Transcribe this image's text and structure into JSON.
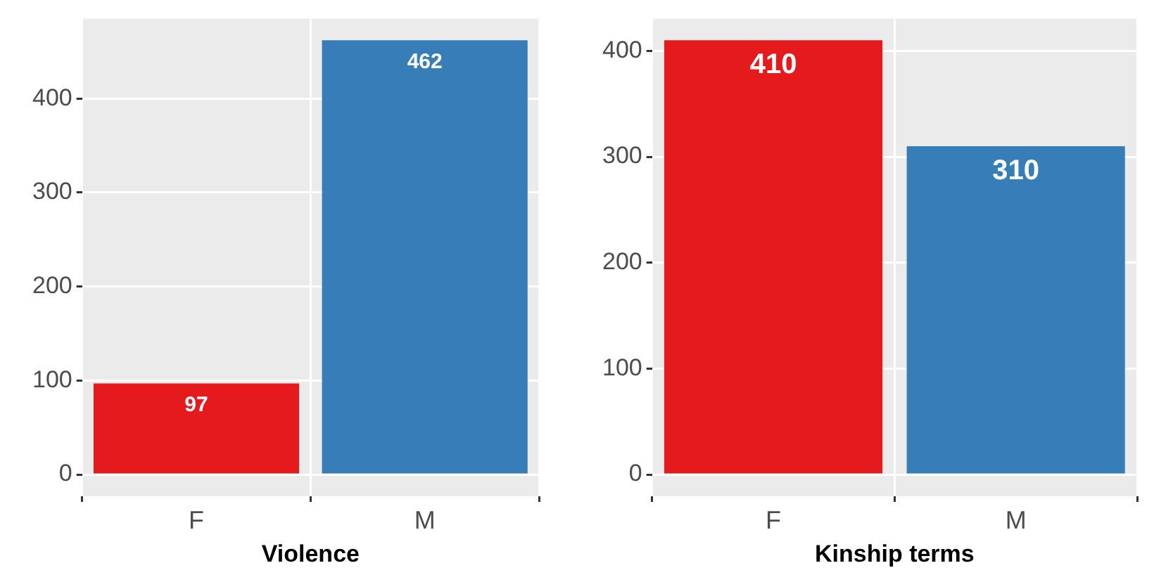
{
  "chart_data": [
    {
      "type": "bar",
      "xlabel": "Violence",
      "categories": [
        "F",
        "M"
      ],
      "values": [
        97,
        462
      ],
      "colors": [
        "#e41a1c",
        "#377eb8"
      ],
      "ylim": [
        -23.1,
        485.1
      ],
      "yticks": [
        0,
        100,
        200,
        300,
        400
      ],
      "grid": true,
      "data_labels": true,
      "legend": false
    },
    {
      "type": "bar",
      "xlabel": "Kinship terms",
      "categories": [
        "F",
        "M"
      ],
      "values": [
        410,
        310
      ],
      "colors": [
        "#e41a1c",
        "#377eb8"
      ],
      "ylim": [
        -20.5,
        430.5
      ],
      "yticks": [
        0,
        100,
        200,
        300,
        400
      ],
      "grid": true,
      "data_labels": true,
      "legend": false
    }
  ]
}
